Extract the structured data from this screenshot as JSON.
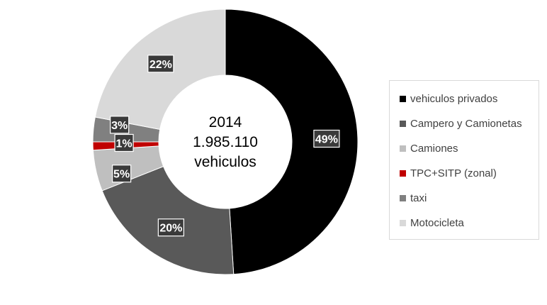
{
  "chart_data": {
    "type": "pie",
    "center_label": [
      "2014",
      "1.985.110",
      "vehiculos"
    ],
    "series": [
      {
        "name": "vehiculos privados",
        "value": 49,
        "label": "49%",
        "color": "#000000"
      },
      {
        "name": "Campero y Camionetas",
        "value": 20,
        "label": "20%",
        "color": "#595959"
      },
      {
        "name": "Camiones",
        "value": 5,
        "label": "5%",
        "color": "#bfbfbf"
      },
      {
        "name": "TPC+SITP (zonal)",
        "value": 1,
        "label": "1%",
        "color": "#c00000"
      },
      {
        "name": "taxi",
        "value": 3,
        "label": "3%",
        "color": "#808080"
      },
      {
        "name": "Motocicleta",
        "value": 22,
        "label": "22%",
        "color": "#d9d9d9"
      }
    ],
    "legend_position": "right"
  }
}
